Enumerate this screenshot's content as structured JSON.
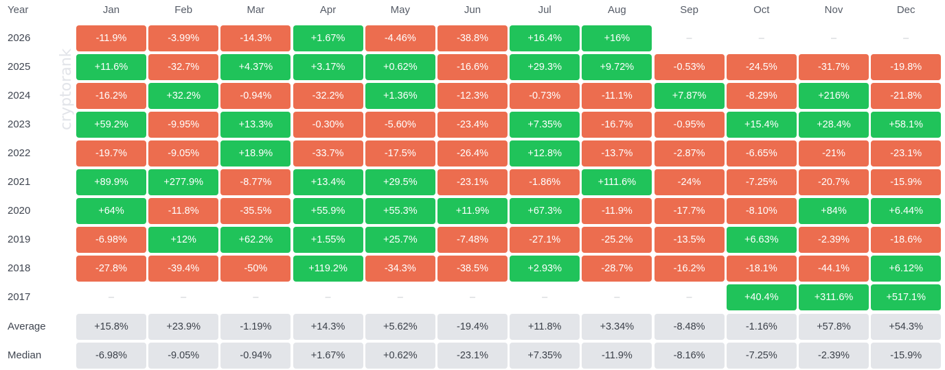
{
  "chart_data": {
    "type": "heatmap",
    "row_header": "Year",
    "columns": [
      "Jan",
      "Feb",
      "Mar",
      "Apr",
      "May",
      "Jun",
      "Jul",
      "Aug",
      "Sep",
      "Oct",
      "Nov",
      "Dec"
    ],
    "rows": [
      {
        "label": "2026",
        "values": [
          "-11.9%",
          "-3.99%",
          "-14.3%",
          "+1.67%",
          "-4.46%",
          "-38.8%",
          "+16.4%",
          "+16%",
          "–",
          "–",
          "–",
          "–"
        ]
      },
      {
        "label": "2025",
        "values": [
          "+11.6%",
          "-32.7%",
          "+4.37%",
          "+3.17%",
          "+0.62%",
          "-16.6%",
          "+29.3%",
          "+9.72%",
          "-0.53%",
          "-24.5%",
          "-31.7%",
          "-19.8%"
        ]
      },
      {
        "label": "2024",
        "values": [
          "-16.2%",
          "+32.2%",
          "-0.94%",
          "-32.2%",
          "+1.36%",
          "-12.3%",
          "-0.73%",
          "-11.1%",
          "+7.87%",
          "-8.29%",
          "+216%",
          "-21.8%"
        ]
      },
      {
        "label": "2023",
        "values": [
          "+59.2%",
          "-9.95%",
          "+13.3%",
          "-0.30%",
          "-5.60%",
          "-23.4%",
          "+7.35%",
          "-16.7%",
          "-0.95%",
          "+15.4%",
          "+28.4%",
          "+58.1%"
        ]
      },
      {
        "label": "2022",
        "values": [
          "-19.7%",
          "-9.05%",
          "+18.9%",
          "-33.7%",
          "-17.5%",
          "-26.4%",
          "+12.8%",
          "-13.7%",
          "-2.87%",
          "-6.65%",
          "-21%",
          "-23.1%"
        ]
      },
      {
        "label": "2021",
        "values": [
          "+89.9%",
          "+277.9%",
          "-8.77%",
          "+13.4%",
          "+29.5%",
          "-23.1%",
          "-1.86%",
          "+111.6%",
          "-24%",
          "-7.25%",
          "-20.7%",
          "-15.9%"
        ]
      },
      {
        "label": "2020",
        "values": [
          "+64%",
          "-11.8%",
          "-35.5%",
          "+55.9%",
          "+55.3%",
          "+11.9%",
          "+67.3%",
          "-11.9%",
          "-17.7%",
          "-8.10%",
          "+84%",
          "+6.44%"
        ]
      },
      {
        "label": "2019",
        "values": [
          "-6.98%",
          "+12%",
          "+62.2%",
          "+1.55%",
          "+25.7%",
          "-7.48%",
          "-27.1%",
          "-25.2%",
          "-13.5%",
          "+6.63%",
          "-2.39%",
          "-18.6%"
        ]
      },
      {
        "label": "2018",
        "values": [
          "-27.8%",
          "-39.4%",
          "-50%",
          "+119.2%",
          "-34.3%",
          "-38.5%",
          "+2.93%",
          "-28.7%",
          "-16.2%",
          "-18.1%",
          "-44.1%",
          "+6.12%"
        ]
      },
      {
        "label": "2017",
        "values": [
          "–",
          "–",
          "–",
          "–",
          "–",
          "–",
          "–",
          "–",
          "–",
          "+40.4%",
          "+311.6%",
          "+517.1%"
        ]
      }
    ],
    "stats": [
      {
        "label": "Average",
        "values": [
          "+15.8%",
          "+23.9%",
          "-1.19%",
          "+14.3%",
          "+5.62%",
          "-19.4%",
          "+11.8%",
          "+3.34%",
          "-8.48%",
          "-1.16%",
          "+57.8%",
          "+54.3%"
        ]
      },
      {
        "label": "Median",
        "values": [
          "-6.98%",
          "-9.05%",
          "-0.94%",
          "+1.67%",
          "+0.62%",
          "-23.1%",
          "+7.35%",
          "-11.9%",
          "-8.16%",
          "-7.25%",
          "-2.39%",
          "-15.9%"
        ]
      }
    ],
    "colors": {
      "positive": "#20c35a",
      "negative": "#ec6d4f",
      "stat_bg": "#e3e5e9",
      "empty_text": "#c9ccd1"
    },
    "watermark": "cryptorank"
  }
}
